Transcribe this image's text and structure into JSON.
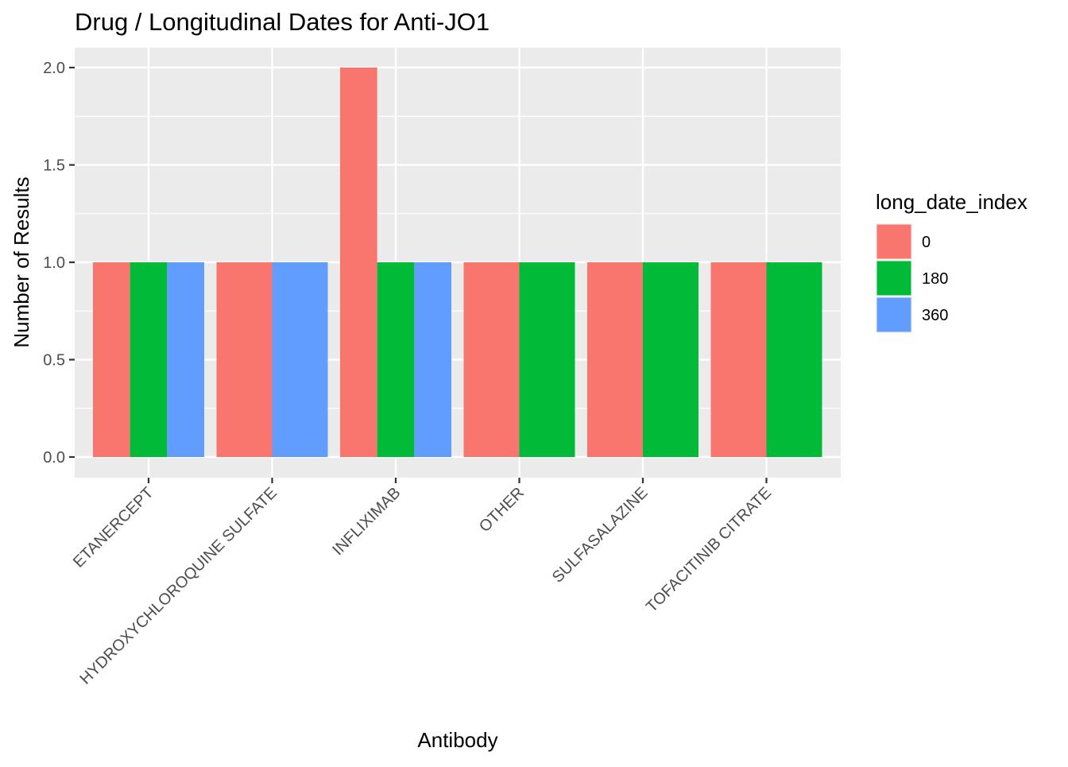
{
  "chart_data": {
    "type": "bar",
    "title": "Drug / Longitudinal Dates for Anti-JO1",
    "xlabel": "Antibody",
    "ylabel": "Number of Results",
    "categories": [
      "ETANERCEPT",
      "HYDROXYCHLOROQUINE SULFATE",
      "INFLIXIMAB",
      "OTHER",
      "SULFASALAZINE",
      "TOFACITINIB CITRATE"
    ],
    "ylim": [
      0,
      2.0
    ],
    "yticks": [
      "0.0",
      "0.5",
      "1.0",
      "1.5",
      "2.0"
    ],
    "grid": true,
    "legend": {
      "title": "long_date_index",
      "placement": "right",
      "entries": [
        "0",
        "180",
        "360"
      ]
    },
    "series": [
      {
        "name": "0",
        "color": "#F8766D",
        "values": [
          1,
          1,
          2,
          1,
          1,
          1
        ]
      },
      {
        "name": "180",
        "color": "#00BA38",
        "values": [
          1,
          null,
          1,
          1,
          1,
          1
        ]
      },
      {
        "name": "360",
        "color": "#619CFF",
        "values": [
          1,
          1,
          1,
          null,
          null,
          null
        ]
      }
    ]
  }
}
